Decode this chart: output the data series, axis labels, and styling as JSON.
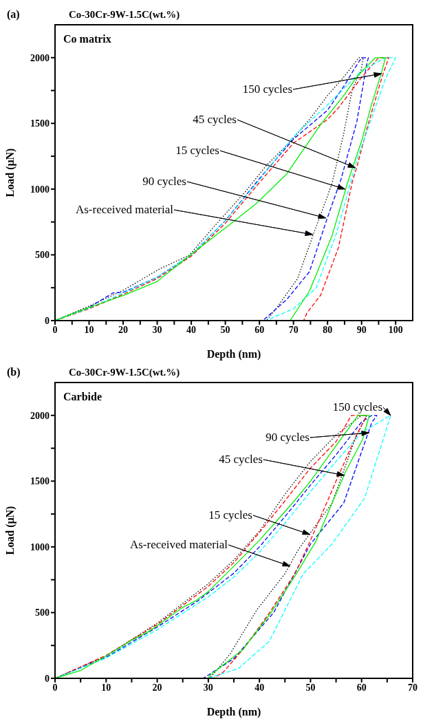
{
  "chart_data": [
    {
      "type": "line",
      "title": "Co-30Cr-9W-1.5C(wt.%)",
      "xlabel": "Depth (nm)",
      "ylabel": "Load (μN)",
      "xlim": [
        0,
        105
      ],
      "ylim": [
        0,
        2250
      ],
      "xticks": [
        0,
        {
          "value": 5,
          "label": null
        },
        10,
        {
          "value": 15,
          "label": null
        },
        20,
        {
          "value": 25,
          "label": null
        },
        30,
        {
          "value": 35,
          "label": null
        },
        40,
        {
          "value": 45,
          "label": null
        },
        50,
        {
          "value": 55,
          "label": null
        },
        60,
        {
          "value": 65,
          "label": null
        },
        70,
        {
          "value": 75,
          "label": null
        },
        80,
        {
          "value": 85,
          "label": null
        },
        90,
        {
          "value": 95,
          "label": null
        },
        100
      ],
      "yticks": [
        0,
        {
          "value": 250,
          "label": null
        },
        500,
        {
          "value": 750,
          "label": null
        },
        1000,
        {
          "value": 1250,
          "label": null
        },
        1500,
        {
          "value": 1750,
          "label": null
        },
        2000
      ],
      "series": [
        {
          "color": "#000000",
          "line_style": "dotted",
          "x": [
            0,
            10,
            20,
            30.7,
            39.4,
            47.3,
            56,
            62,
            69.3,
            75,
            80,
            85,
            89.2,
            90.5,
            89.8,
            87.3,
            84.6,
            81.3,
            80,
            75.9,
            71.2,
            64.7,
            62
          ],
          "values": [
            0,
            110,
            230,
            393,
            497,
            733,
            984,
            1180,
            1366,
            1540,
            1712,
            1860,
            2000,
            2000,
            1900,
            1764,
            1403,
            1042,
            948,
            660,
            319,
            84,
            0
          ]
        },
        {
          "color": "#0000ff",
          "line_style": "dashed",
          "x": [
            0,
            10,
            17,
            20,
            30,
            40,
            50,
            60,
            70,
            80,
            85,
            88,
            90,
            92,
            91.5,
            88.6,
            84,
            80,
            74.7,
            68,
            64.7,
            61
          ],
          "values": [
            0,
            100,
            210,
            215,
            330,
            500,
            760,
            1080,
            1380,
            1600,
            1790,
            1920,
            2000,
            2000,
            1950,
            1513,
            1078,
            785,
            372,
            160,
            84,
            0
          ]
        },
        {
          "color": "#ff0000",
          "line_style": "dashed",
          "x": [
            0,
            10,
            20,
            30,
            40,
            50,
            60,
            70,
            80,
            83.2,
            90,
            95,
            98,
            96,
            92,
            88.6,
            87.3,
            83.2,
            78,
            74,
            73
          ],
          "values": [
            0,
            90,
            200,
            320,
            490,
            740,
            1050,
            1350,
            1530,
            1618,
            1850,
            2000,
            2000,
            1853,
            1500,
            1167,
            1058,
            555,
            194,
            60,
            0
          ]
        },
        {
          "color": "#00ffff",
          "line_style": "dashed",
          "x": [
            0,
            10,
            20,
            30,
            40,
            50,
            60,
            70,
            80,
            90,
            97,
            100,
            97,
            94,
            88.6,
            86.7,
            82.6,
            76.6,
            70,
            64.7,
            62
          ],
          "values": [
            0,
            95,
            210,
            330,
            500,
            760,
            1070,
            1400,
            1640,
            1900,
            2000,
            2000,
            1840,
            1618,
            1220,
            1042,
            660,
            246,
            90,
            31,
            0
          ]
        },
        {
          "color": "#00ee00",
          "line_style": "solid",
          "x": [
            0,
            5,
            10,
            14,
            20,
            30,
            40.7,
            51.4,
            59.3,
            68,
            78,
            85,
            88.6,
            94,
            97,
            96,
            93,
            90,
            86,
            81.3,
            74.7,
            69
          ],
          "values": [
            0,
            50,
            100,
            136,
            190,
            298,
            518,
            733,
            895,
            1115,
            1492,
            1720,
            1853,
            2000,
            2000,
            1900,
            1650,
            1366,
            1058,
            644,
            225,
            0
          ]
        }
      ],
      "annotations": [
        "(a)",
        "Co matrix",
        "150 cycles",
        "45 cycles",
        "15 cycles",
        "90 cycles",
        "As-received material"
      ]
    },
    {
      "type": "line",
      "title": "Co-30Cr-9W-1.5C(wt.%)",
      "xlabel": "Depth (nm)",
      "ylabel": "Load (μN)",
      "xlim": [
        0,
        70
      ],
      "ylim": [
        0,
        2250
      ],
      "xticks": [
        0,
        {
          "value": 5,
          "label": null
        },
        10,
        {
          "value": 15,
          "label": null
        },
        20,
        {
          "value": 25,
          "label": null
        },
        30,
        {
          "value": 35,
          "label": null
        },
        40,
        {
          "value": 45,
          "label": null
        },
        50,
        {
          "value": 55,
          "label": null
        },
        60,
        {
          "value": 65,
          "label": null
        },
        70
      ],
      "yticks": [
        0,
        {
          "value": 250,
          "label": null
        },
        500,
        {
          "value": 750,
          "label": null
        },
        1000,
        {
          "value": 1250,
          "label": null
        },
        1500,
        {
          "value": 1750,
          "label": null
        },
        2000
      ],
      "series": [
        {
          "color": "#000000",
          "line_style": "dotted",
          "x": [
            0,
            10,
            20,
            26,
            30,
            35,
            40,
            45,
            50,
            55,
            60,
            61,
            58.7,
            54.2,
            47.7,
            45,
            39.5,
            34.3,
            30.8,
            30
          ],
          "values": [
            0,
            170,
            420,
            600,
            720,
            900,
            1120,
            1400,
            1650,
            1850,
            2000,
            2000,
            1817,
            1333,
            984,
            796,
            521,
            188,
            22,
            0
          ]
        },
        {
          "color": "#0000ff",
          "line_style": "dashed",
          "x": [
            0,
            10,
            20,
            28,
            35,
            40,
            45,
            50,
            55,
            60,
            62,
            63,
            62,
            56.5,
            50,
            42.8,
            35,
            29
          ],
          "values": [
            0,
            160,
            390,
            590,
            800,
            1000,
            1230,
            1470,
            1700,
            1950,
            2000,
            2000,
            1946,
            1333,
            1021,
            500,
            150,
            0
          ]
        },
        {
          "color": "#ff0000",
          "line_style": "dashed",
          "x": [
            0,
            10,
            20,
            30,
            35,
            40,
            45,
            50,
            55,
            58,
            61,
            59,
            55,
            50,
            47,
            42,
            37,
            33,
            31
          ],
          "values": [
            0,
            175,
            410,
            700,
            880,
            1110,
            1350,
            1600,
            1800,
            2000,
            2000,
            1850,
            1500,
            1050,
            800,
            500,
            230,
            50,
            0
          ]
        },
        {
          "color": "#00ffff",
          "line_style": "dashed",
          "x": [
            0,
            10,
            20,
            30,
            35,
            40,
            45,
            50,
            55,
            60,
            65.7,
            60.6,
            54.2,
            48.6,
            41.9,
            35.9,
            30
          ],
          "values": [
            0,
            155,
            370,
            620,
            770,
            960,
            1180,
            1420,
            1650,
            1870,
            2000,
            1371,
            1021,
            796,
            280,
            75,
            0
          ]
        },
        {
          "color": "#00ee00",
          "line_style": "solid",
          "x": [
            0,
            5,
            10,
            15,
            18.3,
            20,
            25,
            27.6,
            30,
            37.8,
            40,
            43,
            47.3,
            50,
            54.2,
            59.3,
            61.5,
            60.2,
            56.9,
            51,
            47,
            42.3,
            36.8,
            30.3,
            30
          ],
          "values": [
            0,
            60,
            170,
            290,
            355,
            400,
            540,
            591,
            660,
            962,
            1050,
            1180,
            1371,
            1500,
            1726,
            2000,
            2000,
            1817,
            1575,
            1038,
            780,
            500,
            220,
            22,
            0
          ]
        }
      ],
      "annotations": [
        "(b)",
        "Carbide",
        "150 cycles",
        "90 cycles",
        "45 cycles",
        "15 cycles",
        "As-received material"
      ]
    }
  ]
}
